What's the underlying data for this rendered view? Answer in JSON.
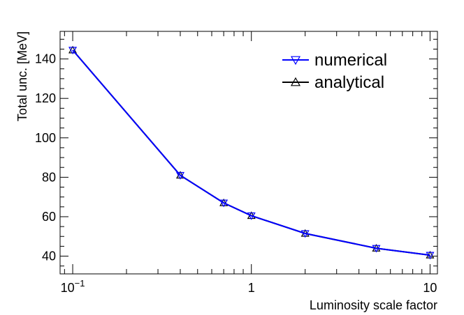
{
  "chart_data": {
    "type": "line",
    "xlabel": "Luminosity scale factor",
    "ylabel": "Total unc. [MeV]",
    "xscale": "log",
    "xlim": [
      0.085,
      11
    ],
    "ylim": [
      31,
      154
    ],
    "x_ticks": [
      {
        "value": 0.1,
        "base": "10",
        "exp": "−1"
      },
      {
        "value": 1,
        "label": "1"
      },
      {
        "value": 10,
        "label": "10"
      }
    ],
    "y_ticks": [
      "40",
      "60",
      "80",
      "100",
      "120",
      "140"
    ],
    "legend_position": "top-right",
    "grid": false,
    "series": [
      {
        "name": "numerical",
        "marker": "triangle-down",
        "color": "#0000ff",
        "x": [
          0.1,
          0.4,
          0.7,
          1,
          2,
          5,
          10
        ],
        "y": [
          144.5,
          81,
          67,
          60.5,
          51.5,
          44,
          40.5
        ]
      },
      {
        "name": "analytical",
        "marker": "triangle-up",
        "color": "#000000",
        "x": [
          0.1,
          0.4,
          0.7,
          1,
          2,
          5,
          10
        ],
        "y": [
          144.5,
          81,
          67,
          60.5,
          51.5,
          44,
          40.5
        ]
      }
    ]
  }
}
